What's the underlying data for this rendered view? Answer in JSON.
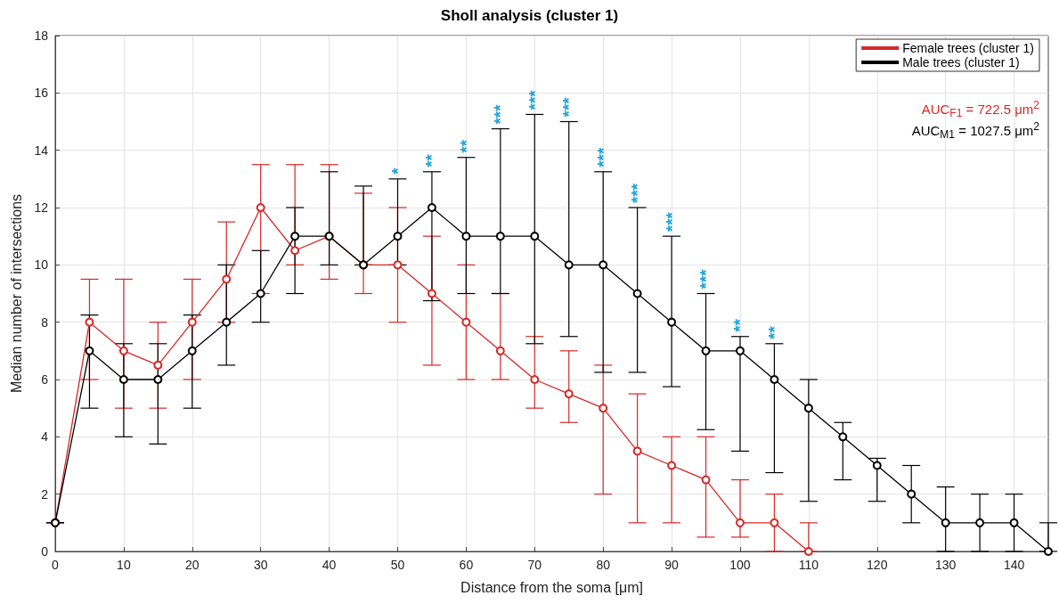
{
  "chart_data": {
    "type": "line",
    "title": "Sholl analysis (cluster 1)",
    "xlabel": "Distance from the soma [μm]",
    "ylabel": "Median number of intersections",
    "xlim": [
      0,
      145
    ],
    "xticks": [
      0,
      10,
      20,
      30,
      40,
      50,
      60,
      70,
      80,
      90,
      100,
      110,
      120,
      130,
      140
    ],
    "ylim": [
      0,
      18
    ],
    "yticks": [
      0,
      2,
      4,
      6,
      8,
      10,
      12,
      14,
      16,
      18
    ],
    "grid": true,
    "legend": "top right",
    "marker": "circle",
    "line_style": "solid",
    "series": [
      {
        "name": "Female trees (cluster 1)",
        "color": "#d62728",
        "x": [
          0,
          5,
          10,
          15,
          20,
          25,
          30,
          35,
          40,
          45,
          50,
          55,
          60,
          65,
          70,
          75,
          80,
          85,
          90,
          95,
          100,
          105,
          110
        ],
        "values": [
          1,
          8,
          7,
          6.5,
          8,
          9.5,
          12,
          10.5,
          11,
          10,
          10,
          9,
          8,
          7,
          6,
          5.5,
          5,
          3.5,
          3,
          2.5,
          1,
          1,
          0
        ],
        "errors": [
          null,
          [
            6,
            9.5
          ],
          [
            5,
            9.5
          ],
          [
            5,
            8
          ],
          [
            6,
            9.5
          ],
          [
            8,
            11.5
          ],
          [
            9,
            13.5
          ],
          [
            10,
            13.5
          ],
          [
            9.5,
            13.5
          ],
          [
            9,
            12.5
          ],
          [
            8,
            12
          ],
          [
            6.5,
            11
          ],
          [
            6,
            10
          ],
          [
            6,
            9
          ],
          [
            5,
            7.5
          ],
          [
            4.5,
            7
          ],
          [
            2,
            6.5
          ],
          [
            1,
            5.5
          ],
          [
            1,
            4
          ],
          [
            0.5,
            4
          ],
          [
            0.5,
            2.5
          ],
          [
            0,
            2
          ],
          [
            0,
            1
          ]
        ]
      },
      {
        "name": "Male trees (cluster 1)",
        "color": "#000000",
        "x": [
          0,
          5,
          10,
          15,
          20,
          25,
          30,
          35,
          40,
          45,
          50,
          55,
          60,
          65,
          70,
          75,
          80,
          85,
          90,
          95,
          100,
          105,
          110,
          115,
          120,
          125,
          130,
          135,
          140,
          145
        ],
        "values": [
          1,
          7,
          6,
          6,
          7,
          8,
          9,
          11,
          11,
          10,
          11,
          12,
          11,
          11,
          11,
          10,
          10,
          9,
          8,
          7,
          7,
          6,
          5,
          4,
          3,
          2,
          1,
          1,
          1,
          0
        ],
        "errors": [
          [
            1,
            1
          ],
          [
            5,
            8.25
          ],
          [
            4,
            7.25
          ],
          [
            3.75,
            7.25
          ],
          [
            5,
            8.25
          ],
          [
            6.5,
            10
          ],
          [
            8,
            10.5
          ],
          [
            9,
            12
          ],
          [
            10,
            13.25
          ],
          [
            10,
            12.75
          ],
          [
            10,
            13
          ],
          [
            8.75,
            13.25
          ],
          [
            9,
            13.75
          ],
          [
            9,
            14.75
          ],
          [
            7.25,
            15.25
          ],
          [
            7.5,
            15
          ],
          [
            6.25,
            13.25
          ],
          [
            6.25,
            12
          ],
          [
            5.75,
            11
          ],
          [
            4.25,
            9
          ],
          [
            3.5,
            7.5
          ],
          [
            2.75,
            7.25
          ],
          [
            1.75,
            6
          ],
          [
            2.5,
            4.5
          ],
          [
            1.75,
            3.25
          ],
          [
            1,
            3
          ],
          [
            0,
            2.25
          ],
          [
            0,
            2
          ],
          [
            0,
            2
          ],
          [
            0,
            1
          ]
        ]
      }
    ],
    "annotations": [
      "AUC$_{F1}$ = 722.5 μm$^{2}$",
      "AUC$_{M1}$ = 1027.5 μm$^{2}$",
      {
        "text": "*",
        "x": 50,
        "y": 13
      },
      {
        "text": "**",
        "x": 55,
        "y": 13.25
      },
      {
        "text": "**",
        "x": 60,
        "y": 13.75
      },
      {
        "text": "***",
        "x": 65,
        "y": 14.75
      },
      {
        "text": "***",
        "x": 70,
        "y": 15.25
      },
      {
        "text": "***",
        "x": 75,
        "y": 15
      },
      {
        "text": "***",
        "x": 80,
        "y": 13.25
      },
      {
        "text": "***",
        "x": 85,
        "y": 12
      },
      {
        "text": "***",
        "x": 90,
        "y": 11
      },
      {
        "text": "***",
        "x": 95,
        "y": 9
      },
      {
        "text": "**",
        "x": 100,
        "y": 7.5
      },
      {
        "text": "**",
        "x": 105,
        "y": 7.25
      }
    ]
  }
}
